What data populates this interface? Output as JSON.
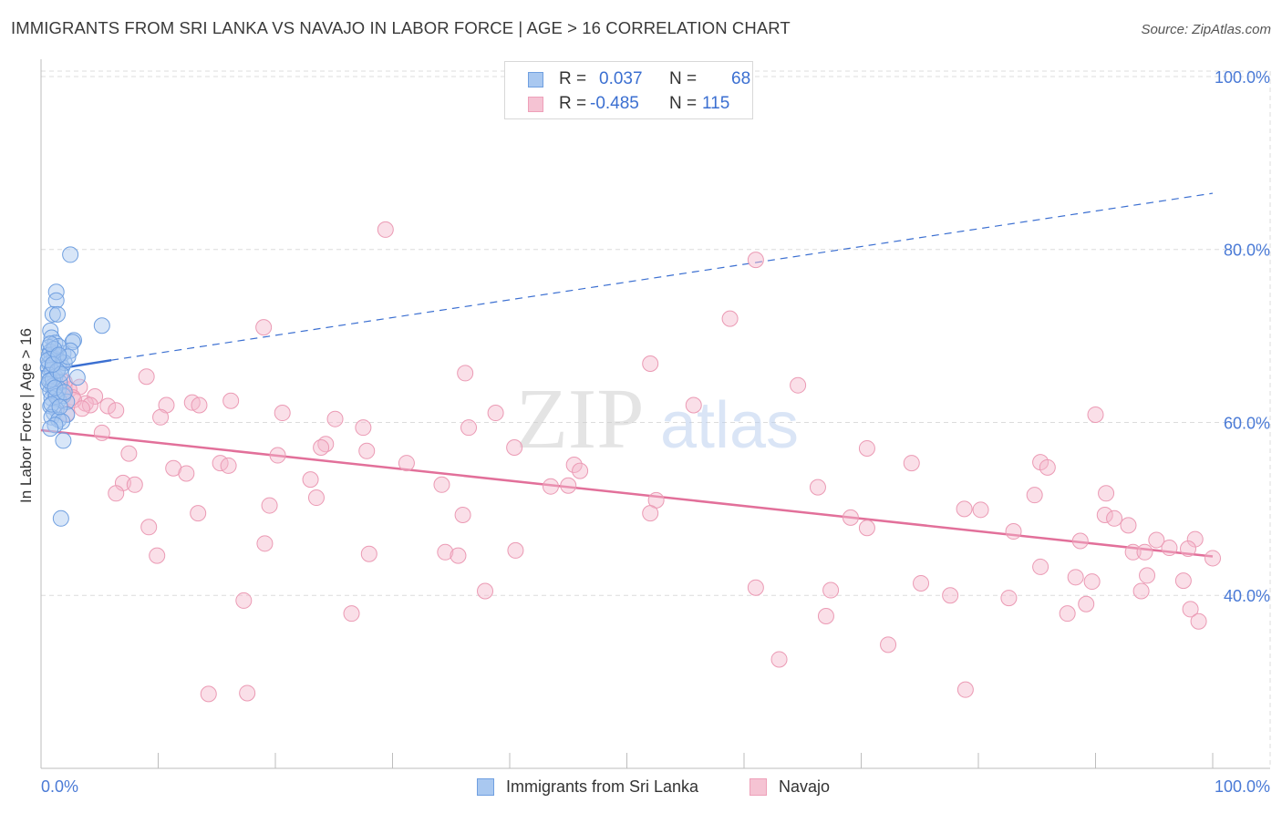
{
  "header": {
    "title": "IMMIGRANTS FROM SRI LANKA VS NAVAJO IN LABOR FORCE | AGE > 16 CORRELATION CHART",
    "source": "Source: ZipAtlas.com"
  },
  "legend_top": {
    "rows": [
      {
        "r_label": "R =",
        "r_value": "0.037",
        "n_label": "N =",
        "n_value": "68"
      },
      {
        "r_label": "R =",
        "r_value": "-0.485",
        "n_label": "N =",
        "n_value": "115"
      }
    ]
  },
  "legend_bottom": {
    "items": [
      {
        "label": "Immigrants from Sri Lanka"
      },
      {
        "label": "Navajo"
      }
    ]
  },
  "watermark": {
    "zip": "ZIP",
    "atlas": "atlas"
  },
  "colors": {
    "blue": "#3b6fd1",
    "blue_fill": "#a9c8f0",
    "pink": "#e2709a",
    "pink_fill": "#f5b9cc",
    "grid": "#dcdcdc",
    "tick_label": "#4a7ad6"
  },
  "chart_data": {
    "type": "scatter",
    "title": "IMMIGRANTS FROM SRI LANKA VS NAVAJO IN LABOR FORCE | AGE > 16 CORRELATION CHART",
    "xlabel": "",
    "ylabel": "In Labor Force | Age > 16",
    "xlim": [
      0,
      100
    ],
    "ylim": [
      20,
      102
    ],
    "x_tick_labels": [
      "0.0%",
      "100.0%"
    ],
    "y_ticks": [
      40,
      60,
      80,
      100
    ],
    "y_tick_labels": [
      "40.0%",
      "60.0%",
      "80.0%",
      "100.0%"
    ],
    "grid": true,
    "legend_position": "top-center",
    "series": [
      {
        "name": "Immigrants from Sri Lanka",
        "color": "#3b6fd1",
        "r": 0.037,
        "n": 68,
        "trend_solid": [
          [
            0,
            65.9
          ],
          [
            6.0,
            67.2
          ]
        ],
        "trend_dashed": [
          [
            6.0,
            67.2
          ],
          [
            100,
            86.5
          ]
        ],
        "points": [
          [
            2.5,
            79.4
          ],
          [
            1.3,
            75.1
          ],
          [
            1.3,
            74.1
          ],
          [
            1.0,
            72.5
          ],
          [
            1.4,
            72.5
          ],
          [
            5.2,
            71.2
          ],
          [
            0.8,
            70.6
          ],
          [
            0.9,
            69.8
          ],
          [
            2.8,
            69.5
          ],
          [
            2.7,
            69.3
          ],
          [
            1.2,
            69.2
          ],
          [
            0.7,
            68.7
          ],
          [
            0.8,
            68.2
          ],
          [
            1.9,
            68.0
          ],
          [
            2.5,
            68.3
          ],
          [
            1.1,
            67.9
          ],
          [
            0.9,
            67.5
          ],
          [
            1.3,
            67.3
          ],
          [
            1.6,
            67.1
          ],
          [
            0.7,
            66.8
          ],
          [
            1.1,
            66.6
          ],
          [
            0.6,
            66.3
          ],
          [
            0.9,
            66.1
          ],
          [
            1.4,
            65.9
          ],
          [
            0.7,
            65.5
          ],
          [
            1.2,
            65.3
          ],
          [
            3.1,
            65.2
          ],
          [
            0.8,
            64.9
          ],
          [
            1.6,
            64.6
          ],
          [
            0.6,
            64.4
          ],
          [
            1.0,
            64.2
          ],
          [
            1.5,
            63.9
          ],
          [
            0.8,
            63.6
          ],
          [
            1.2,
            63.3
          ],
          [
            1.9,
            63.1
          ],
          [
            0.9,
            62.8
          ],
          [
            1.5,
            62.6
          ],
          [
            2.2,
            62.4
          ],
          [
            0.8,
            61.9
          ],
          [
            1.3,
            61.5
          ],
          [
            1.1,
            61.1
          ],
          [
            2.2,
            60.9
          ],
          [
            0.9,
            60.6
          ],
          [
            1.5,
            60.3
          ],
          [
            1.8,
            60.1
          ],
          [
            1.2,
            59.7
          ],
          [
            0.8,
            59.3
          ],
          [
            1.9,
            57.9
          ],
          [
            1.7,
            48.9
          ],
          [
            0.7,
            67.8
          ],
          [
            1.8,
            66.4
          ],
          [
            1.0,
            65.0
          ],
          [
            1.5,
            68.8
          ],
          [
            0.6,
            67.2
          ],
          [
            2.0,
            66.9
          ],
          [
            1.3,
            63.0
          ],
          [
            0.9,
            62.1
          ],
          [
            1.6,
            61.8
          ],
          [
            0.7,
            64.8
          ],
          [
            1.4,
            66.0
          ],
          [
            2.3,
            67.6
          ],
          [
            1.1,
            68.5
          ],
          [
            0.8,
            69.1
          ],
          [
            1.7,
            65.6
          ],
          [
            1.2,
            64.0
          ],
          [
            2.0,
            63.5
          ],
          [
            1.0,
            66.7
          ],
          [
            1.5,
            67.8
          ]
        ]
      },
      {
        "name": "Navajo",
        "color": "#e2709a",
        "r": -0.485,
        "n": 115,
        "trend_solid": [
          [
            0,
            59.1
          ],
          [
            100,
            44.5
          ]
        ],
        "points": [
          [
            29.4,
            82.3
          ],
          [
            61.0,
            78.8
          ],
          [
            19.0,
            71.0
          ],
          [
            58.8,
            72.0
          ],
          [
            52.0,
            66.8
          ],
          [
            36.2,
            65.7
          ],
          [
            9.0,
            65.3
          ],
          [
            64.6,
            64.3
          ],
          [
            1.8,
            64.8
          ],
          [
            3.3,
            64.1
          ],
          [
            2.4,
            63.8
          ],
          [
            2.7,
            62.9
          ],
          [
            4.6,
            63.0
          ],
          [
            3.8,
            62.2
          ],
          [
            4.2,
            62.0
          ],
          [
            5.7,
            61.9
          ],
          [
            10.7,
            62.0
          ],
          [
            12.9,
            62.3
          ],
          [
            13.5,
            62.0
          ],
          [
            16.2,
            62.5
          ],
          [
            55.7,
            62.0
          ],
          [
            20.6,
            61.1
          ],
          [
            2.2,
            61.0
          ],
          [
            38.8,
            61.1
          ],
          [
            90.0,
            60.9
          ],
          [
            10.2,
            60.6
          ],
          [
            25.1,
            60.4
          ],
          [
            27.5,
            59.4
          ],
          [
            36.5,
            59.4
          ],
          [
            5.2,
            58.8
          ],
          [
            24.3,
            57.5
          ],
          [
            23.9,
            57.1
          ],
          [
            40.4,
            57.1
          ],
          [
            70.5,
            57.0
          ],
          [
            27.8,
            56.7
          ],
          [
            7.5,
            56.4
          ],
          [
            20.2,
            56.2
          ],
          [
            15.3,
            55.3
          ],
          [
            16.0,
            55.0
          ],
          [
            31.2,
            55.3
          ],
          [
            45.5,
            55.1
          ],
          [
            74.3,
            55.3
          ],
          [
            85.3,
            55.4
          ],
          [
            85.9,
            54.8
          ],
          [
            11.3,
            54.7
          ],
          [
            12.4,
            54.1
          ],
          [
            46.0,
            54.4
          ],
          [
            23.0,
            53.4
          ],
          [
            7.0,
            53.0
          ],
          [
            8.0,
            52.8
          ],
          [
            34.2,
            52.8
          ],
          [
            43.5,
            52.6
          ],
          [
            45.0,
            52.7
          ],
          [
            66.3,
            52.5
          ],
          [
            6.4,
            51.8
          ],
          [
            23.5,
            51.3
          ],
          [
            52.5,
            51.0
          ],
          [
            84.8,
            51.6
          ],
          [
            90.9,
            51.8
          ],
          [
            19.5,
            50.4
          ],
          [
            78.8,
            50.0
          ],
          [
            80.2,
            49.9
          ],
          [
            13.4,
            49.5
          ],
          [
            36.0,
            49.3
          ],
          [
            52.0,
            49.5
          ],
          [
            90.8,
            49.3
          ],
          [
            91.6,
            48.9
          ],
          [
            69.1,
            49.0
          ],
          [
            92.8,
            48.1
          ],
          [
            9.2,
            47.9
          ],
          [
            70.5,
            47.8
          ],
          [
            83.0,
            47.4
          ],
          [
            98.5,
            46.5
          ],
          [
            88.7,
            46.3
          ],
          [
            19.1,
            46.0
          ],
          [
            95.2,
            46.4
          ],
          [
            96.3,
            45.5
          ],
          [
            97.9,
            45.4
          ],
          [
            40.5,
            45.2
          ],
          [
            34.5,
            45.0
          ],
          [
            35.6,
            44.6
          ],
          [
            28.0,
            44.8
          ],
          [
            9.9,
            44.6
          ],
          [
            93.2,
            45.0
          ],
          [
            94.2,
            45.0
          ],
          [
            100.0,
            44.3
          ],
          [
            85.3,
            43.3
          ],
          [
            88.3,
            42.1
          ],
          [
            94.4,
            42.3
          ],
          [
            97.5,
            41.7
          ],
          [
            75.1,
            41.4
          ],
          [
            61.0,
            40.9
          ],
          [
            93.9,
            40.5
          ],
          [
            67.4,
            40.6
          ],
          [
            77.6,
            40.0
          ],
          [
            82.6,
            39.7
          ],
          [
            37.9,
            40.5
          ],
          [
            17.3,
            39.4
          ],
          [
            89.2,
            39.0
          ],
          [
            98.1,
            38.4
          ],
          [
            26.5,
            37.9
          ],
          [
            87.6,
            37.9
          ],
          [
            67.0,
            37.6
          ],
          [
            98.8,
            37.0
          ],
          [
            72.3,
            34.3
          ],
          [
            63.0,
            32.6
          ],
          [
            78.9,
            29.1
          ],
          [
            14.3,
            28.6
          ],
          [
            17.6,
            28.7
          ],
          [
            89.7,
            41.6
          ],
          [
            6.4,
            61.4
          ],
          [
            2.0,
            64.7
          ],
          [
            2.8,
            62.6
          ],
          [
            1.9,
            63.3
          ],
          [
            3.5,
            61.6
          ]
        ]
      }
    ]
  }
}
